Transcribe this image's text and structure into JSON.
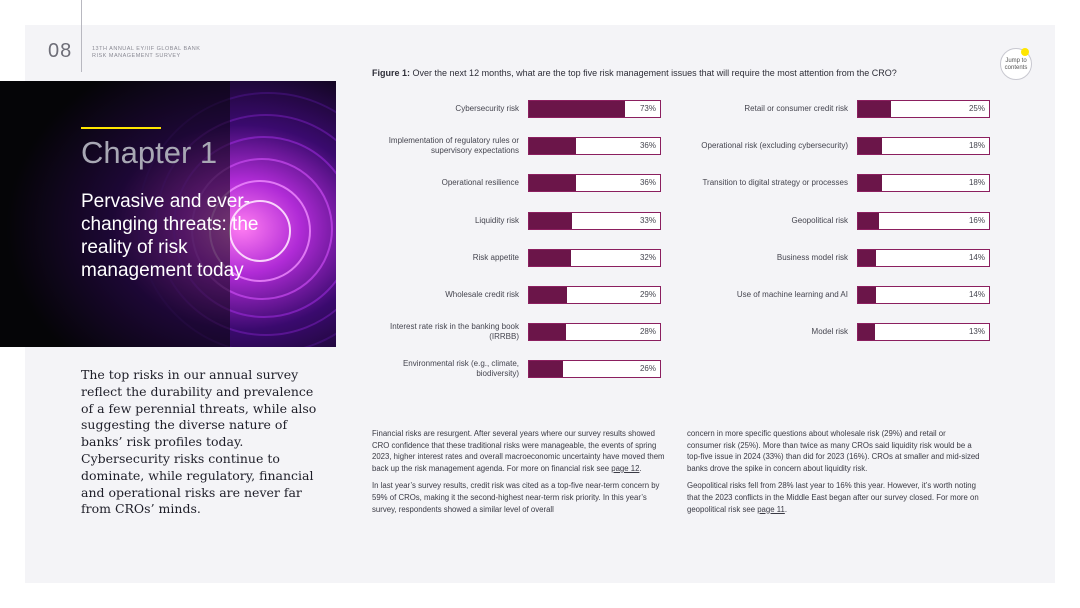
{
  "header": {
    "page_number": "08",
    "running_head_line1": "13TH ANNUAL EY/IIF GLOBAL BANK",
    "running_head_line2": "RISK MANAGEMENT SURVEY",
    "jump_label_line1": "Jump to",
    "jump_label_line2": "contents"
  },
  "hero": {
    "chapter": "Chapter 1",
    "subtitle": "Pervasive and ever-changing threats: the reality of risk management today"
  },
  "intro": "The top risks in our annual survey reflect the durability and prevalence of a few perennial threats, while also suggesting the diverse nature of banks’ risk profiles today. Cybersecurity risks continue to dominate, while regulatory, financial and operational risks are never far from CROs’ minds.",
  "figure": {
    "label": "Figure 1:",
    "question": "Over the next 12 months, what are the top five risk management issues that will require the most attention from the CRO?"
  },
  "chart_data": {
    "type": "bar",
    "orientation": "horizontal",
    "xlim": [
      0,
      100
    ],
    "left_column": {
      "categories": [
        "Cybersecurity risk",
        "Implementation of regulatory rules or supervisory expectations",
        "Operational resilience",
        "Liquidity risk",
        "Risk appetite",
        "Wholesale credit risk",
        "Interest rate risk in the banking book (IRRBB)",
        "Environmental risk (e.g., climate, biodiversity)"
      ],
      "values": [
        73,
        36,
        36,
        33,
        32,
        29,
        28,
        26
      ],
      "value_labels": [
        "73%",
        "36%",
        "36%",
        "33%",
        "32%",
        "29%",
        "28%",
        "26%"
      ]
    },
    "right_column": {
      "categories": [
        "Retail or consumer credit risk",
        "Operational risk (excluding cybersecurity)",
        "Transition to digital strategy or processes",
        "Geopolitical risk",
        "Business model risk",
        "Use of machine learning and AI",
        "Model risk"
      ],
      "values": [
        25,
        18,
        18,
        16,
        14,
        14,
        13
      ],
      "value_labels": [
        "25%",
        "18%",
        "18%",
        "16%",
        "14%",
        "14%",
        "13%"
      ]
    },
    "colors": {
      "fill": "#6b1549",
      "border": "#8b1f5f"
    }
  },
  "body": {
    "left_p1": "Financial risks are resurgent. After several years where our survey results showed CRO confidence that these traditional risks were manageable, the events of spring 2023, higher interest rates and overall macroeconomic uncertainty have moved them back up the risk management agenda. For more on financial risk see ",
    "left_p1_link": "page 12",
    "left_p1_end": ".",
    "left_p2": "In last year’s survey results, credit risk was cited as a top-five near-term concern by 59% of CROs, making it the second-highest near-term risk priority. In this year’s survey, respondents showed a similar level of overall",
    "right_p1": "concern in more specific questions about wholesale risk (29%) and retail or consumer risk (25%). More than twice as many CROs said liquidity risk would be a top-five issue in 2024 (33%) than did for 2023 (16%). CROs at smaller and mid-sized banks drove the spike in concern about liquidity risk.",
    "right_p2": "Geopolitical risks fell from 28% last year to 16% this year. However, it’s worth noting that the 2023 conflicts in the Middle East began after our survey closed. For more on geopolitical risk see ",
    "right_p2_link": "page 11",
    "right_p2_end": "."
  }
}
